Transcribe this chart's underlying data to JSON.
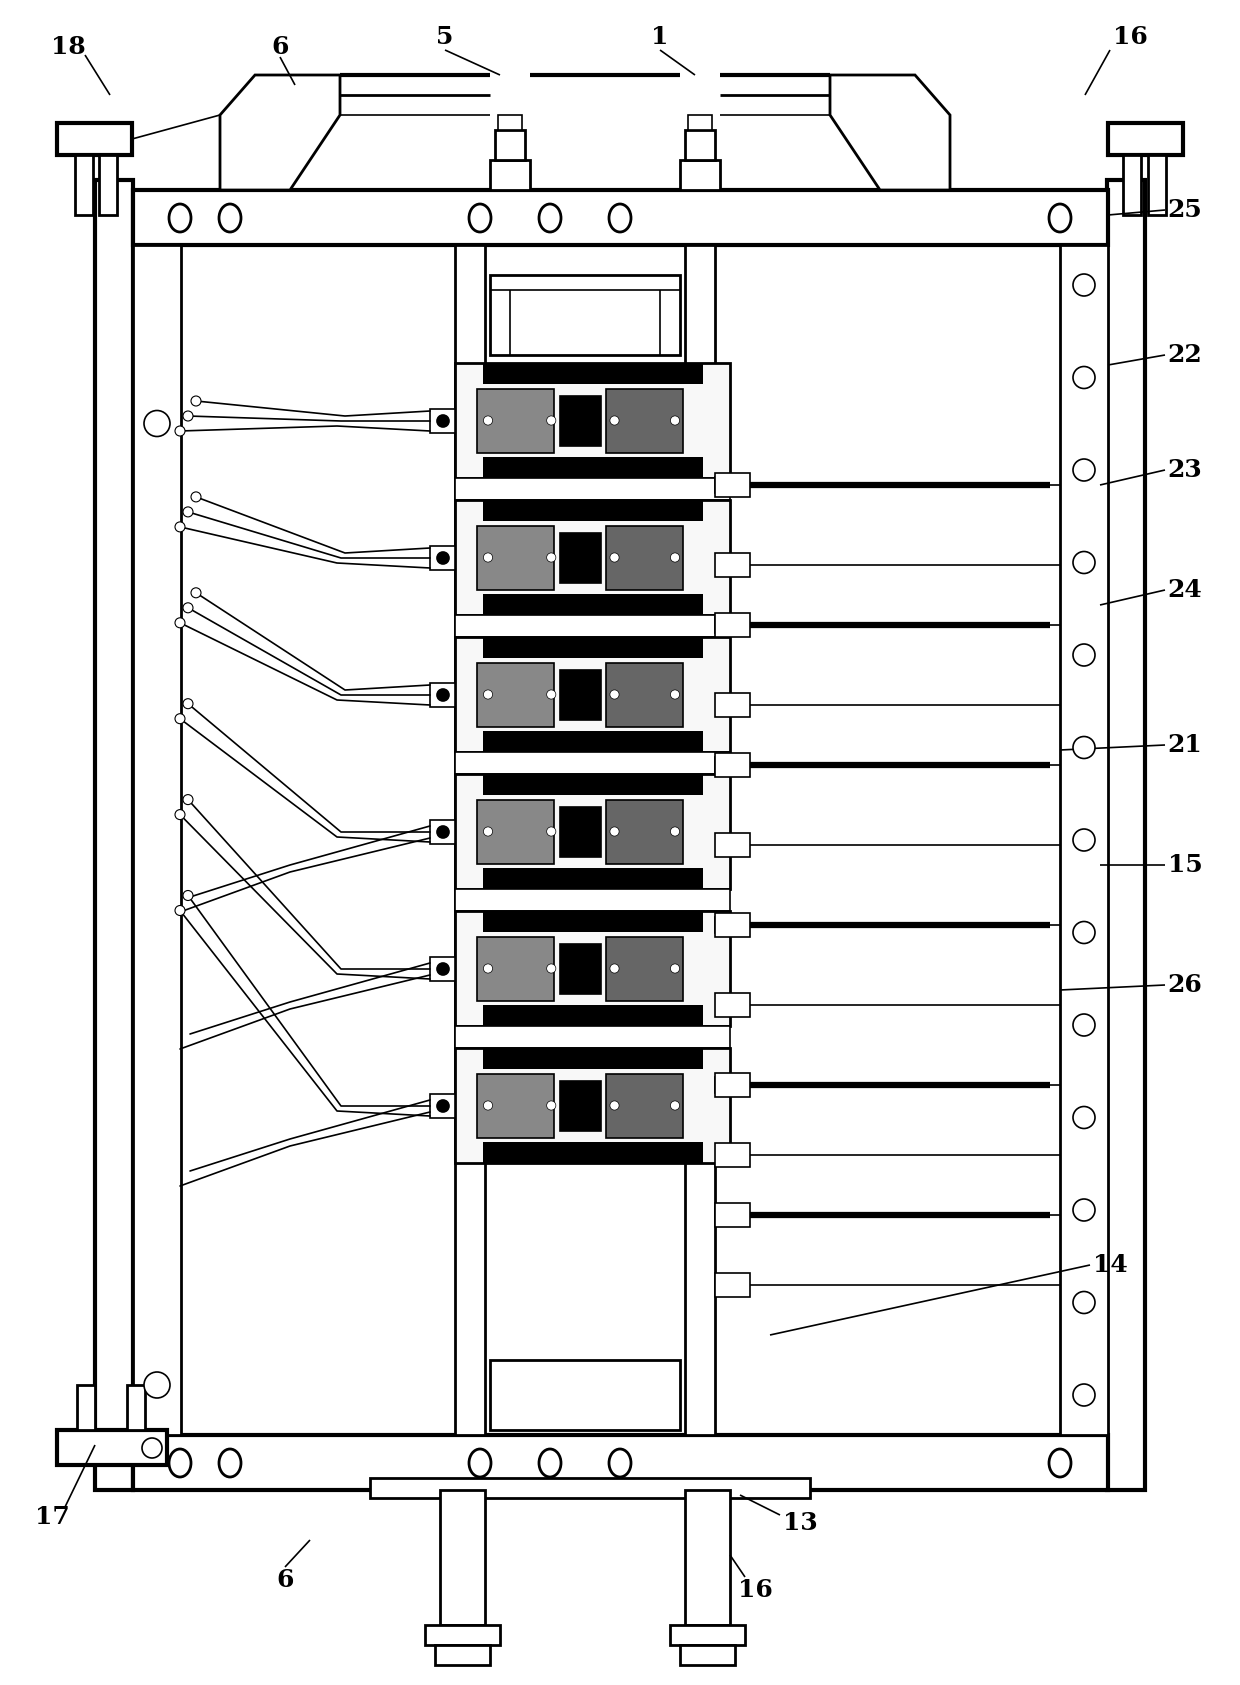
{
  "background_color": "#ffffff",
  "line_color": "#000000",
  "fig_width": 12.4,
  "fig_height": 16.85,
  "ann_fontsize": 18
}
